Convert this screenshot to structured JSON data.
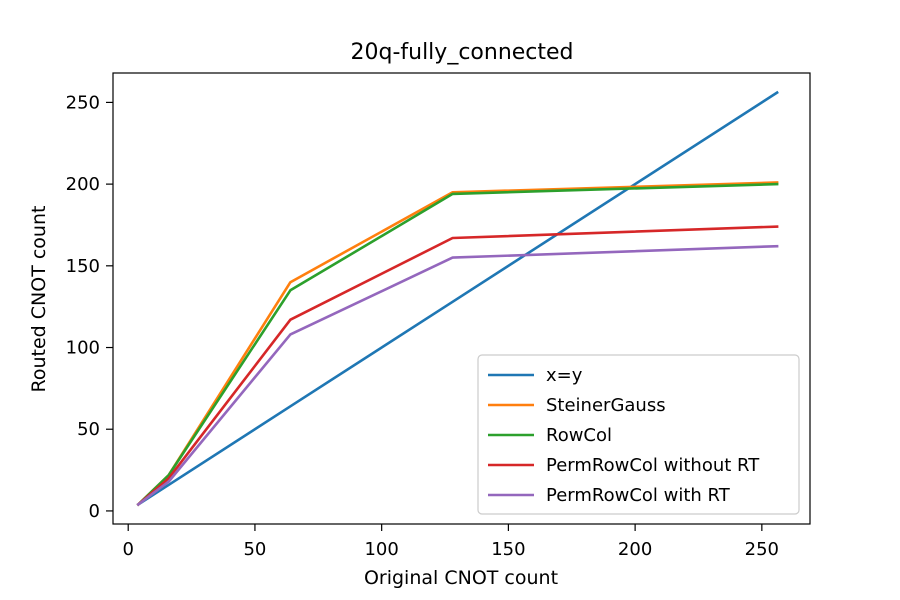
{
  "chart_data": {
    "type": "line",
    "title": "20q-fully_connected",
    "xlabel": "Original CNOT count",
    "ylabel": "Routed CNOT count",
    "xlim": [
      -6,
      269
    ],
    "ylim": [
      -8,
      268
    ],
    "xticks": [
      0,
      50,
      100,
      150,
      200,
      250
    ],
    "yticks": [
      0,
      50,
      100,
      150,
      200,
      250
    ],
    "grid": false,
    "legend_position": "lower-right",
    "x": [
      4,
      16,
      64,
      128,
      256
    ],
    "series": [
      {
        "name": "x=y",
        "color": "#1f77b4",
        "values": [
          4,
          16,
          64,
          128,
          256
        ]
      },
      {
        "name": "SteinerGauss",
        "color": "#ff7f0e",
        "values": [
          4,
          22,
          140,
          195,
          201
        ]
      },
      {
        "name": "RowCol",
        "color": "#2ca02c",
        "values": [
          4,
          22,
          135,
          194,
          200
        ]
      },
      {
        "name": "PermRowCol without RT",
        "color": "#d62728",
        "values": [
          4,
          20,
          117,
          167,
          174
        ]
      },
      {
        "name": "PermRowCol with RT",
        "color": "#9467bd",
        "values": [
          4,
          18,
          108,
          155,
          162
        ]
      }
    ]
  }
}
